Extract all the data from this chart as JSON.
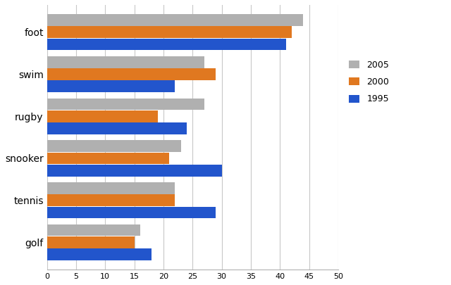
{
  "categories": [
    "foot",
    "swim",
    "rugby",
    "snooker",
    "tennis",
    "golf"
  ],
  "years": [
    "2005",
    "2000",
    "1995"
  ],
  "colors": {
    "2005": "#b0b0b0",
    "2000": "#e07820",
    "1995": "#2255cc"
  },
  "values": {
    "2005": [
      44,
      27,
      27,
      23,
      22,
      16
    ],
    "2000": [
      42,
      29,
      19,
      21,
      22,
      15
    ],
    "1995": [
      41,
      22,
      24,
      30,
      29,
      18
    ]
  },
  "xlim": [
    0,
    50
  ],
  "xticks": [
    0,
    5,
    10,
    15,
    20,
    25,
    30,
    35,
    40,
    45,
    50
  ],
  "background_color": "#ffffff",
  "grid_color": "#c8c8c8",
  "bar_height": 0.28,
  "bar_gap": 0.01
}
